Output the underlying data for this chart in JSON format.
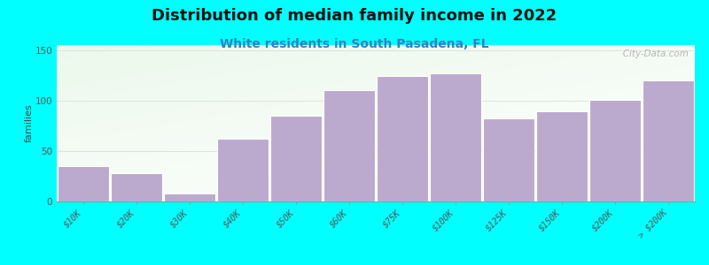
{
  "title": "Distribution of median family income in 2022",
  "subtitle": "White residents in South Pasadena, FL",
  "ylabel": "families",
  "categories": [
    "$10K",
    "$20K",
    "$30K",
    "$40K",
    "$50K",
    "$60K",
    "$75K",
    "$100K",
    "$125K",
    "$150K",
    "$200K",
    "> $200K"
  ],
  "values": [
    35,
    28,
    8,
    62,
    85,
    110,
    124,
    127,
    82,
    89,
    101,
    120
  ],
  "bar_color": "#bbaace",
  "background_color": "#00ffff",
  "yticks": [
    0,
    50,
    100,
    150
  ],
  "ylim": [
    0,
    155
  ],
  "title_fontsize": 13,
  "subtitle_fontsize": 10,
  "ylabel_fontsize": 8,
  "tick_fontsize": 7,
  "watermark": "   City-Data.com"
}
